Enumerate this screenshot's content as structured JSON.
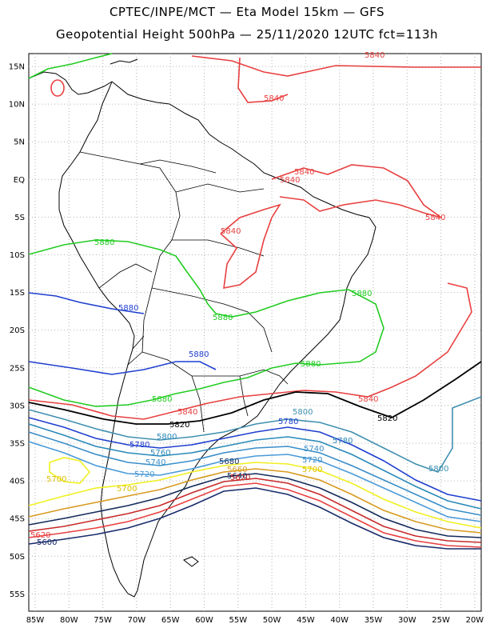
{
  "title_line1": "CPTEC/INPE/MCT —  Eta Model 15km — GFS",
  "title_line2": "Geopotential Height 500hPa — 25/11/2020 12UTC fct=113h",
  "lat_labels": [
    "15N",
    "10N",
    "5N",
    "EQ",
    "5S",
    "10S",
    "15S",
    "20S",
    "25S",
    "30S",
    "35S",
    "40S",
    "45S",
    "50S",
    "55S"
  ],
  "lon_labels": [
    "85W",
    "80W",
    "75W",
    "70W",
    "65W",
    "60W",
    "55W",
    "50W",
    "45W",
    "40W",
    "35W",
    "30W",
    "25W",
    "20W"
  ],
  "contours": [
    {
      "value": 5880,
      "color": "#22cc22",
      "label": "5880"
    },
    {
      "value": 5840,
      "color": "#e84040",
      "label": "5840"
    },
    {
      "value": 5820,
      "color": "#000000",
      "label": "5820"
    },
    {
      "value": 5800,
      "color": "#4090b0",
      "label": "5800"
    },
    {
      "value": 5780,
      "color": "#1f3fd0",
      "label": "5780"
    },
    {
      "value": 5760,
      "color": "#2a8ab8",
      "label": "5760"
    },
    {
      "value": 5740,
      "color": "#3a8ec8",
      "label": "5740"
    },
    {
      "value": 5720,
      "color": "#4a9ad8",
      "label": "5720"
    },
    {
      "value": 5700,
      "color": "#f0f020",
      "label": "5700"
    },
    {
      "value": 5680,
      "color": "#d89a20",
      "label": "5680"
    },
    {
      "value": 5660,
      "color": "#142a5a",
      "label": "5660"
    },
    {
      "value": 5640,
      "color": "#c82a2a",
      "label": "5640"
    },
    {
      "value": 5620,
      "color": "#e84040",
      "label": "5620"
    },
    {
      "value": 5600,
      "color": "#182a6a",
      "label": "5600"
    }
  ],
  "colors": {
    "grid": "#b4b4b4",
    "coast": "#000000"
  }
}
